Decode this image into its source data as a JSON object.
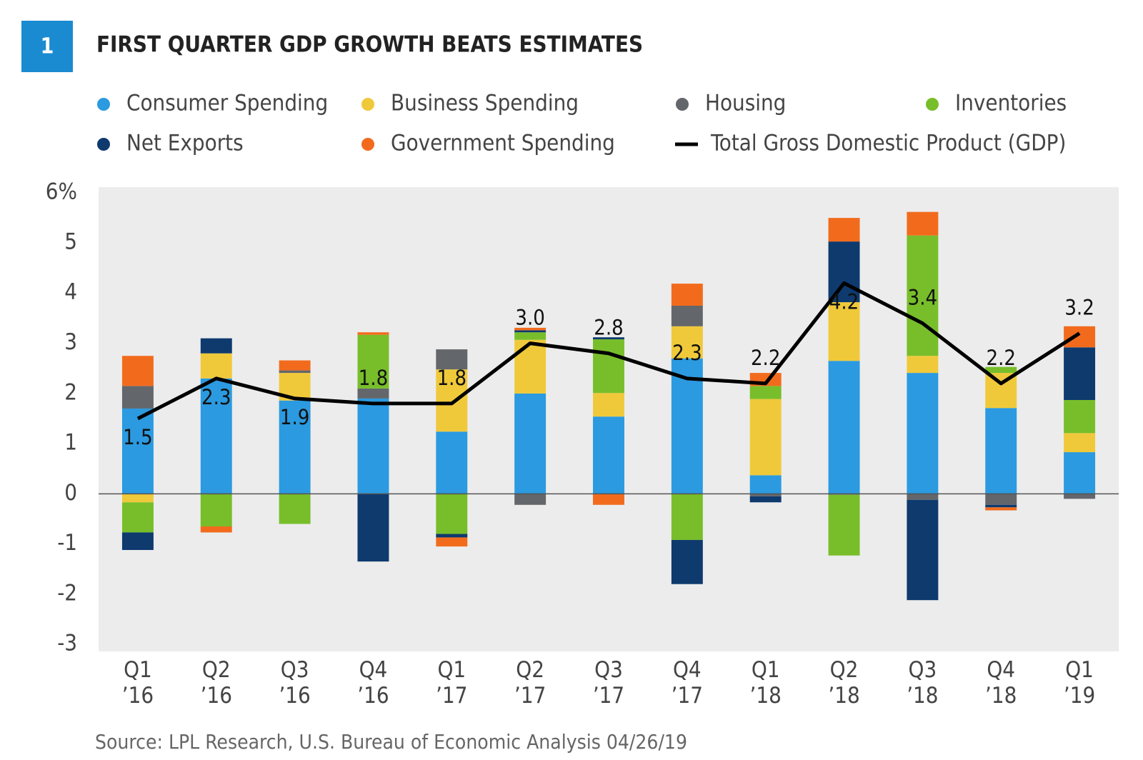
{
  "badge": "1",
  "chart_data": {
    "type": "stacked_bar",
    "title": "FIRST QUARTER GDP GROWTH BEATS ESTIMATES",
    "source": "Source: LPL Research, U.S. Bureau of Economic Analysis  04/26/19",
    "categories": [
      "Q1 ’16",
      "Q2 ’16",
      "Q3 ’16",
      "Q4 ’16",
      "Q1 ’17",
      "Q2 ’17",
      "Q3 ’17",
      "Q4 ’17",
      "Q1 ’18",
      "Q2 ’18",
      "Q3 ’18",
      "Q4 ’18",
      "Q1 ’19"
    ],
    "series": [
      {
        "name": "Consumer Spending",
        "color": "#2b9ae0",
        "values": [
          1.7,
          2.3,
          1.86,
          1.9,
          1.24,
          2.0,
          1.54,
          2.7,
          0.37,
          2.65,
          2.41,
          1.71,
          0.83
        ]
      },
      {
        "name": "Business Spending",
        "color": "#f0c93a",
        "values": [
          -0.17,
          0.5,
          0.55,
          0,
          1.24,
          1.07,
          0.47,
          0.64,
          1.52,
          1.17,
          0.34,
          0.7,
          0.38
        ]
      },
      {
        "name": "Housing",
        "color": "#63666a",
        "values": [
          0.45,
          0,
          0.05,
          0.2,
          0.4,
          -0.22,
          0,
          0.41,
          -0.05,
          -0.02,
          -0.12,
          -0.22,
          -0.1
        ]
      },
      {
        "name": "Inventories",
        "color": "#78be2a",
        "values": [
          -0.6,
          -0.65,
          -0.6,
          1.07,
          -0.8,
          0.15,
          1.07,
          -0.92,
          0.26,
          -1.21,
          2.4,
          0.12,
          0.66
        ]
      },
      {
        "name": "Net Exports",
        "color": "#0e3a6e",
        "values": [
          -0.35,
          0.3,
          0,
          -1.35,
          -0.07,
          0.04,
          0.04,
          -0.88,
          -0.12,
          1.21,
          -2.0,
          -0.05,
          1.05
        ]
      },
      {
        "name": "Government Spending",
        "color": "#f26b1d",
        "values": [
          0.6,
          -0.12,
          0.2,
          0.05,
          -0.18,
          0.05,
          -0.22,
          0.44,
          0.26,
          0.47,
          0.47,
          -0.06,
          0.42
        ]
      },
      {
        "name": "Total Gross Domestic Product (GDP)",
        "type": "line",
        "color": "#000000",
        "values": [
          1.5,
          2.3,
          1.9,
          1.8,
          1.8,
          3.0,
          2.8,
          2.3,
          2.2,
          4.2,
          3.4,
          2.2,
          3.2
        ],
        "value_labels": [
          "1.5",
          "2.3",
          "1.9",
          "1.8",
          "1.8",
          "3.0",
          "2.8",
          "2.3",
          "2.2",
          "4.2",
          "3.4",
          "2.2",
          "3.2"
        ]
      }
    ],
    "ylim": [
      -3,
      6
    ],
    "yticks": [
      -3,
      -2,
      -1,
      0,
      1,
      2,
      3,
      4,
      5,
      {
        "value": 6,
        "label": "6%"
      }
    ]
  }
}
